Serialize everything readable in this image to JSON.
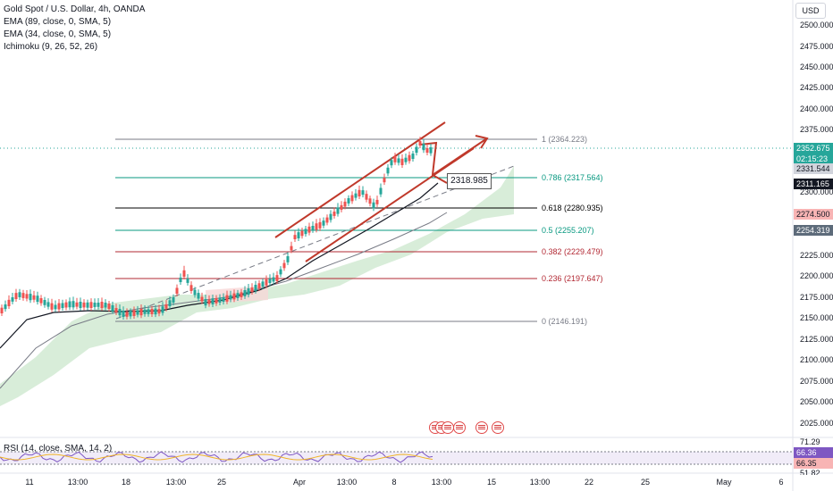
{
  "legend": {
    "symbol": "Gold Spot / U.S. Dollar, 4h, OANDA",
    "ema89": "EMA (89, close, 0, SMA, 5)",
    "ema34": "EMA (34, close, 0, SMA, 5)",
    "ichimoku": "Ichimoku (9, 26, 52, 26)",
    "rsi": "RSI (14, close, SMA, 14, 2)"
  },
  "currency": "USD",
  "price_axis": [
    "2500.000",
    "2475.000",
    "2450.000",
    "2425.000",
    "2400.000",
    "2375.000",
    "2300.000",
    "2225.000",
    "2200.000",
    "2175.000",
    "2150.000",
    "2125.000",
    "2100.000",
    "2075.000",
    "2050.000",
    "2025.000"
  ],
  "price_labels": {
    "last": "2352.675",
    "countdown": "02:15:23",
    "ema_close": "2331.544",
    "ema34": "2311.165",
    "cloud_a": "2274.500",
    "cloud_b": "2254.319"
  },
  "rsi_axis": {
    "top": "71.29",
    "v1": "66.36",
    "v2": "66.35",
    "bottom": "51.82"
  },
  "time_axis": [
    "11",
    "13:00",
    "18",
    "13:00",
    "25",
    "Apr",
    "13:00",
    "8",
    "13:00",
    "15",
    "13:00",
    "22",
    "25",
    "May",
    "6"
  ],
  "fib_levels": [
    {
      "label": "1 (2364.223)",
      "color": "#787b86"
    },
    {
      "label": "0.786 (2317.564)",
      "color": "#089981"
    },
    {
      "label": "0.618 (2280.935)",
      "color": "#000000"
    },
    {
      "label": "0.5 (2255.207)",
      "color": "#089981"
    },
    {
      "label": "0.382 (2229.479)",
      "color": "#b22833"
    },
    {
      "label": "0.236 (2197.647)",
      "color": "#b22833"
    },
    {
      "label": "0 (2146.191)",
      "color": "#787b86"
    }
  ],
  "callout": "2318.985",
  "colors": {
    "up": "#26a69a",
    "down": "#ef5350",
    "cloud": "#c8e6c9",
    "channel": "#c0392b",
    "ema": "#131722"
  }
}
